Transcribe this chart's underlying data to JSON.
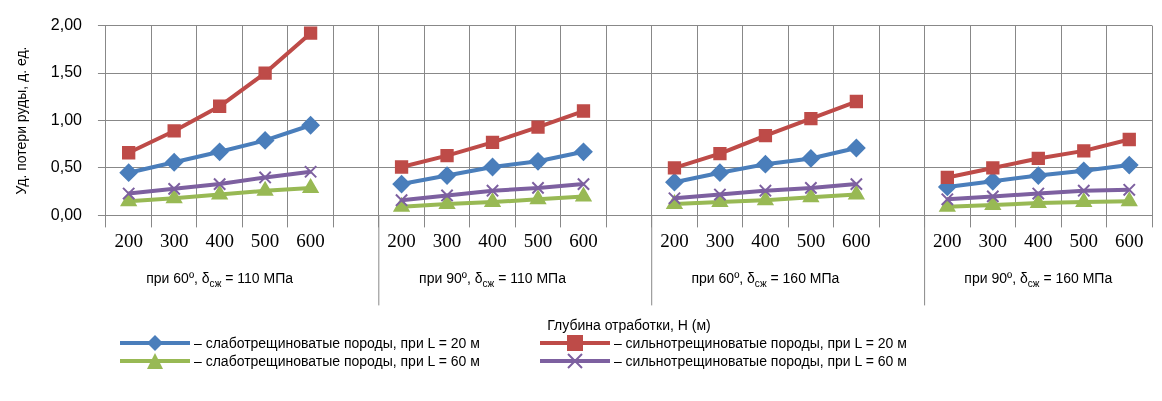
{
  "chart_data": {
    "type": "line",
    "xlabel": "Глубина отработки, H (м)",
    "ylabel": "Уд. потери руды, д. ед.",
    "categories": [
      "200",
      "300",
      "400",
      "500",
      "600",
      null,
      "200",
      "300",
      "400",
      "500",
      "600",
      null,
      "200",
      "300",
      "400",
      "500",
      "600",
      null,
      "200",
      "300",
      "400",
      "500",
      "600"
    ],
    "annotations": [
      "при 60º, δ$_{сж}$ = 110 МПа",
      "при 90º, δ$_{сж}$ = 110 МПа",
      "при 60º, δ$_{сж}$ = 160 МПа",
      "при 90º, δ$_{сж}$ = 160 МПа"
    ],
    "series": [
      {
        "name": "– слаботрещиноватые породы, при L = 20 м",
        "color": "#4a7ebb",
        "marker": "diamond",
        "values": [
          0.45,
          0.56,
          0.67,
          0.79,
          0.95,
          null,
          0.33,
          0.42,
          0.51,
          0.57,
          0.67,
          null,
          0.35,
          0.45,
          0.54,
          0.6,
          0.71,
          null,
          0.3,
          0.36,
          0.42,
          0.47,
          0.53
        ]
      },
      {
        "name": "– сильнотрещиноватые породы, при L = 20 м",
        "color": "#be4b48",
        "marker": "square",
        "values": [
          0.66,
          0.89,
          1.15,
          1.5,
          1.92,
          null,
          0.51,
          0.63,
          0.77,
          0.93,
          1.1,
          null,
          0.5,
          0.65,
          0.84,
          1.02,
          1.2,
          null,
          0.4,
          0.5,
          0.6,
          0.68,
          0.8
        ]
      },
      {
        "name": "– слаботрещиноватые породы, при L = 60 м",
        "color": "#98b954",
        "marker": "triangle",
        "values": [
          0.15,
          0.18,
          0.22,
          0.26,
          0.29,
          null,
          0.09,
          0.12,
          0.14,
          0.17,
          0.2,
          null,
          0.12,
          0.14,
          0.16,
          0.19,
          0.22,
          null,
          0.09,
          0.11,
          0.13,
          0.14,
          0.15
        ]
      },
      {
        "name": "– сильнотрещиноватые породы, при L = 60 м",
        "color": "#7d60a0",
        "marker": "cross",
        "values": [
          0.23,
          0.28,
          0.33,
          0.4,
          0.46,
          null,
          0.16,
          0.21,
          0.26,
          0.29,
          0.33,
          null,
          0.18,
          0.22,
          0.26,
          0.29,
          0.33,
          null,
          0.17,
          0.2,
          0.23,
          0.26,
          0.27
        ]
      }
    ],
    "ylim": [
      0,
      2
    ],
    "yticks": [
      {
        "value": 0,
        "label": "0,00"
      },
      {
        "value": 0.5,
        "label": "0,50"
      },
      {
        "value": 1,
        "label": "1,00"
      },
      {
        "value": 1.5,
        "label": "1,50"
      },
      {
        "value": 2,
        "label": "2,00"
      }
    ],
    "grid": true,
    "legend": "bottom",
    "line_style": "solid"
  }
}
